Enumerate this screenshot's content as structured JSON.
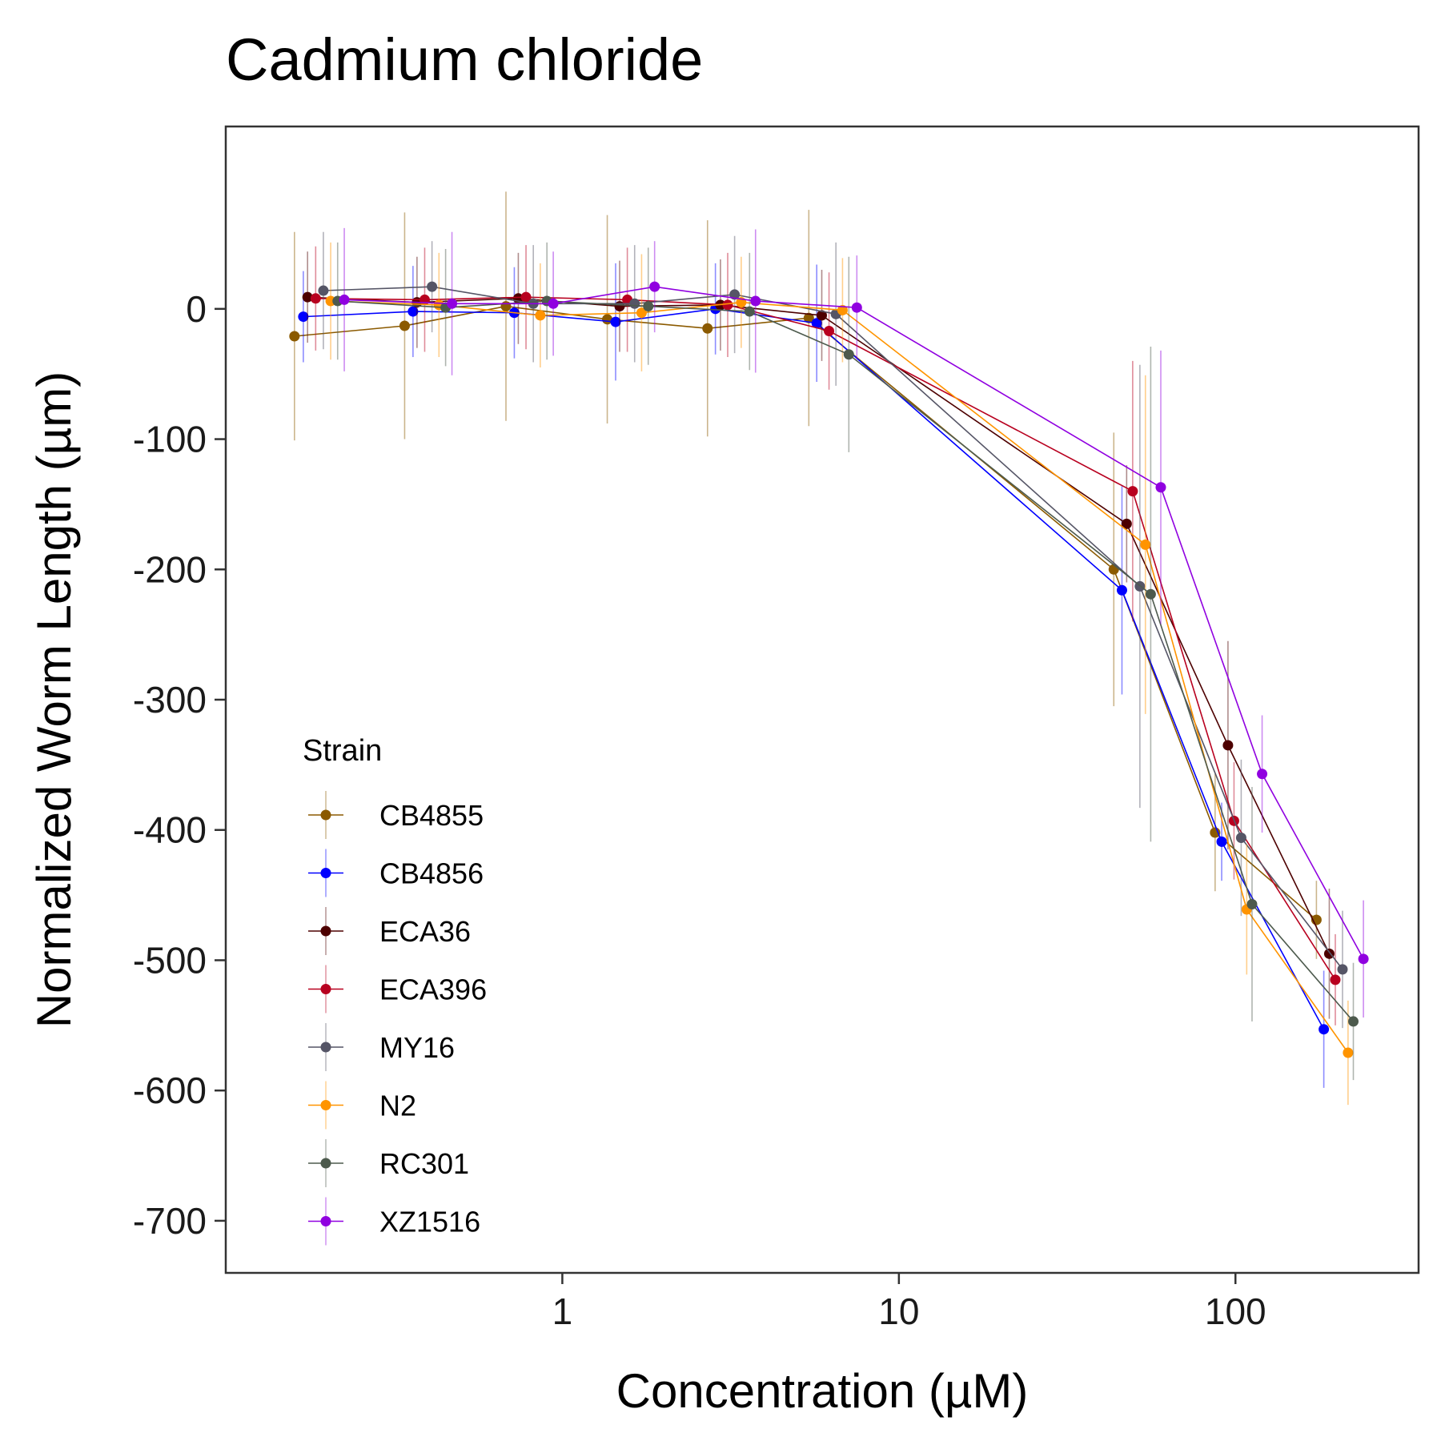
{
  "chart_data": {
    "type": "line",
    "title": "Cadmium chloride",
    "xlabel": "Concentration (µM)",
    "ylabel": "Normalized Worm Length (µm)",
    "x_scale": "log",
    "xlim": [
      0.1,
      350
    ],
    "ylim": [
      -740,
      140
    ],
    "x_ticks": [
      1,
      10,
      100
    ],
    "x_tick_labels": [
      "1",
      "10",
      "100"
    ],
    "y_ticks": [
      0,
      -100,
      -200,
      -300,
      -400,
      -500,
      -600,
      -700
    ],
    "y_tick_labels": [
      "0",
      "-100",
      "-200",
      "-300",
      "-400",
      "-500",
      "-600",
      "-700"
    ],
    "grid": false,
    "legend": {
      "title": "Strain",
      "position": "bottom-left-inside"
    },
    "series": [
      {
        "name": "CB4855",
        "color": "#8B5A00",
        "points": [
          {
            "x": 0.16,
            "y": -21,
            "err": 80
          },
          {
            "x": 0.34,
            "y": -13,
            "err": 87
          },
          {
            "x": 0.68,
            "y": 2,
            "err": 88
          },
          {
            "x": 1.36,
            "y": -8,
            "err": 80
          },
          {
            "x": 2.7,
            "y": -15,
            "err": 83
          },
          {
            "x": 5.4,
            "y": -7,
            "err": 83
          },
          {
            "x": 43.5,
            "y": -200,
            "err": 105
          },
          {
            "x": 87,
            "y": -402,
            "err": 45
          },
          {
            "x": 174,
            "y": -469,
            "err": 30
          }
        ]
      },
      {
        "name": "CB4856",
        "color": "#0000FF",
        "points": [
          {
            "x": 0.17,
            "y": -6,
            "err": 35
          },
          {
            "x": 0.36,
            "y": -2,
            "err": 35
          },
          {
            "x": 0.72,
            "y": -3,
            "err": 35
          },
          {
            "x": 1.44,
            "y": -10,
            "err": 45
          },
          {
            "x": 2.85,
            "y": 0,
            "err": 35
          },
          {
            "x": 5.7,
            "y": -11,
            "err": 45
          },
          {
            "x": 46,
            "y": -216,
            "err": 80
          },
          {
            "x": 91,
            "y": -409,
            "err": 30
          },
          {
            "x": 183,
            "y": -553,
            "err": 45
          }
        ]
      },
      {
        "name": "ECA36",
        "color": "#4D0000",
        "points": [
          {
            "x": 0.175,
            "y": 9,
            "err": 35
          },
          {
            "x": 0.37,
            "y": 5,
            "err": 35
          },
          {
            "x": 0.74,
            "y": 8,
            "err": 35
          },
          {
            "x": 1.48,
            "y": 2,
            "err": 35
          },
          {
            "x": 2.95,
            "y": 3,
            "err": 35
          },
          {
            "x": 5.9,
            "y": -5,
            "err": 35
          },
          {
            "x": 47.5,
            "y": -165,
            "err": 45
          },
          {
            "x": 95,
            "y": -335,
            "err": 80
          },
          {
            "x": 190,
            "y": -495,
            "err": 50
          }
        ]
      },
      {
        "name": "ECA396",
        "color": "#B8001F",
        "points": [
          {
            "x": 0.185,
            "y": 8,
            "err": 40
          },
          {
            "x": 0.39,
            "y": 7,
            "err": 40
          },
          {
            "x": 0.78,
            "y": 9,
            "err": 40
          },
          {
            "x": 1.56,
            "y": 7,
            "err": 40
          },
          {
            "x": 3.1,
            "y": 3,
            "err": 40
          },
          {
            "x": 6.2,
            "y": -17,
            "err": 45
          },
          {
            "x": 49.5,
            "y": -140,
            "err": 100
          },
          {
            "x": 99,
            "y": -393,
            "err": 45
          },
          {
            "x": 198,
            "y": -515,
            "err": 35
          }
        ]
      },
      {
        "name": "MY16",
        "color": "#555566",
        "points": [
          {
            "x": 0.195,
            "y": 14,
            "err": 45
          },
          {
            "x": 0.41,
            "y": 17,
            "err": 35
          },
          {
            "x": 0.82,
            "y": 4,
            "err": 45
          },
          {
            "x": 1.64,
            "y": 4,
            "err": 45
          },
          {
            "x": 3.25,
            "y": 11,
            "err": 45
          },
          {
            "x": 6.5,
            "y": -4,
            "err": 55
          },
          {
            "x": 52,
            "y": -213,
            "err": 170
          },
          {
            "x": 104,
            "y": -406,
            "err": 60
          },
          {
            "x": 208,
            "y": -507,
            "err": 45
          }
        ]
      },
      {
        "name": "N2",
        "color": "#FF9400",
        "points": [
          {
            "x": 0.205,
            "y": 6,
            "err": 45
          },
          {
            "x": 0.43,
            "y": 3,
            "err": 40
          },
          {
            "x": 0.86,
            "y": -5,
            "err": 40
          },
          {
            "x": 1.72,
            "y": -3,
            "err": 45
          },
          {
            "x": 3.4,
            "y": 5,
            "err": 35
          },
          {
            "x": 6.8,
            "y": -1,
            "err": 40
          },
          {
            "x": 54,
            "y": -181,
            "err": 130
          },
          {
            "x": 108,
            "y": -461,
            "err": 50
          },
          {
            "x": 216,
            "y": -571,
            "err": 40
          }
        ]
      },
      {
        "name": "RC301",
        "color": "#4D5A4D",
        "points": [
          {
            "x": 0.215,
            "y": 6,
            "err": 45
          },
          {
            "x": 0.45,
            "y": 1,
            "err": 45
          },
          {
            "x": 0.9,
            "y": 6,
            "err": 45
          },
          {
            "x": 1.8,
            "y": 2,
            "err": 45
          },
          {
            "x": 3.6,
            "y": -2,
            "err": 45
          },
          {
            "x": 7.1,
            "y": -35,
            "err": 75
          },
          {
            "x": 56,
            "y": -219,
            "err": 190
          },
          {
            "x": 112,
            "y": -457,
            "err": 90
          },
          {
            "x": 224,
            "y": -547,
            "err": 45
          }
        ]
      },
      {
        "name": "XZ1516",
        "color": "#9000E0",
        "points": [
          {
            "x": 0.225,
            "y": 7,
            "err": 55
          },
          {
            "x": 0.47,
            "y": 4,
            "err": 55
          },
          {
            "x": 0.94,
            "y": 4,
            "err": 40
          },
          {
            "x": 1.88,
            "y": 17,
            "err": 35
          },
          {
            "x": 3.75,
            "y": 6,
            "err": 55
          },
          {
            "x": 7.5,
            "y": 1,
            "err": 40
          },
          {
            "x": 60,
            "y": -137,
            "err": 105
          },
          {
            "x": 120,
            "y": -357,
            "err": 45
          },
          {
            "x": 240,
            "y": -499,
            "err": 45
          }
        ]
      }
    ]
  }
}
